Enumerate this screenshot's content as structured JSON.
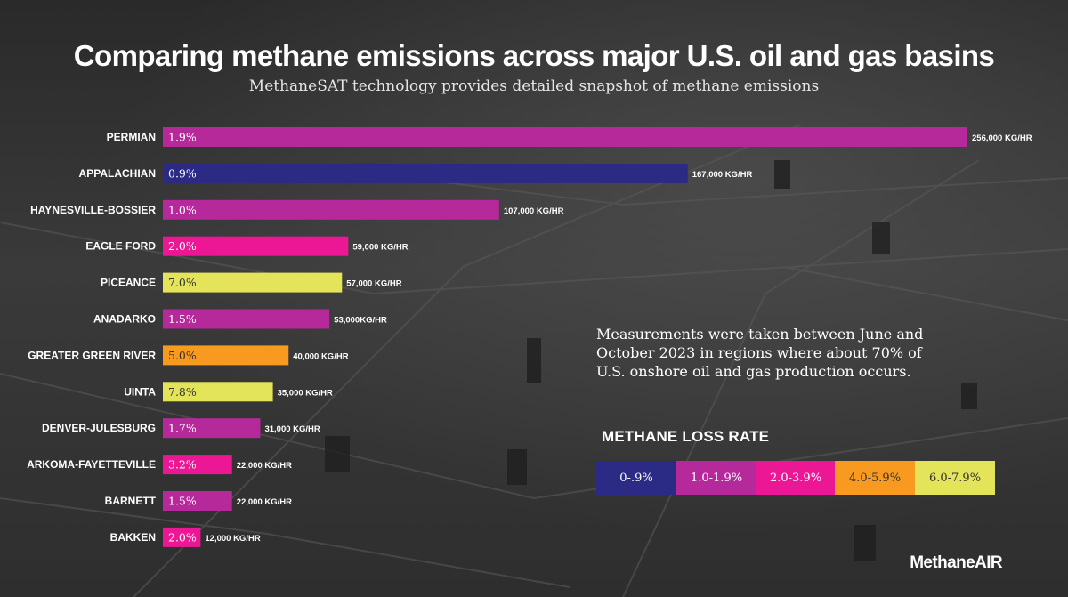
{
  "title": "Comparing methane emissions across major U.S. oil and gas basins",
  "subtitle": "MethaneSAT technology provides detailed snapshot of methane emissions",
  "note": "Measurements were taken between June and October 2023 in regions where about 70% of U.S. onshore oil and gas production occurs.",
  "brand": "MethaneAIR",
  "colors": {
    "rate_0_09": "#2b2a85",
    "rate_10_19": "#b5299a",
    "rate_20_39": "#ec1795",
    "rate_40_59": "#f79a1f",
    "rate_60_79": "#e4e45a"
  },
  "legend": {
    "title": "METHANE LOSS RATE",
    "items": [
      {
        "label": "0-.9%",
        "color": "#2b2a85",
        "text_color": "#ffffff"
      },
      {
        "label": "1.0-1.9%",
        "color": "#b5299a",
        "text_color": "#ffffff"
      },
      {
        "label": "2.0-3.9%",
        "color": "#ec1795",
        "text_color": "#ffffff"
      },
      {
        "label": "4.0-5.9%",
        "color": "#f79a1f",
        "text_color": "#333333"
      },
      {
        "label": "6.0-7.9%",
        "color": "#e4e45a",
        "text_color": "#333333"
      }
    ]
  },
  "chart_data": {
    "type": "bar",
    "orientation": "horizontal",
    "title": "Comparing methane emissions across major U.S. oil and gas basins",
    "subtitle": "MethaneSAT technology provides detailed snapshot of methane emissions",
    "unit": "KG/HR",
    "categories": [
      "PERMIAN",
      "APPALACHIAN",
      "HAYNESVILLE-BOSSIER",
      "EAGLE FORD",
      "PICEANCE",
      "ANADARKO",
      "GREATER GREEN RIVER",
      "UINTA",
      "DENVER-JULESBURG",
      "ARKOMA-FAYETTEVILLE",
      "BARNETT",
      "BAKKEN"
    ],
    "values": [
      256000,
      167000,
      107000,
      59000,
      57000,
      53000,
      40000,
      35000,
      31000,
      22000,
      22000,
      12000
    ],
    "value_labels": [
      "256,000 KG/HR",
      "167,000 KG/HR",
      "107,000 KG/HR",
      "59,000 KG/HR",
      "57,000 KG/HR",
      "53,000KG/HR",
      "40,000 KG/HR",
      "35,000 KG/HR",
      "31,000 KG/HR",
      "22,000 KG/HR",
      "22,000 KG/HR",
      "12,000 KG/HR"
    ],
    "loss_rates": [
      "1.9%",
      "0.9%",
      "1.0%",
      "2.0%",
      "7.0%",
      "1.5%",
      "5.0%",
      "7.8%",
      "1.7%",
      "3.2%",
      "1.5%",
      "2.0%"
    ],
    "bar_colors": [
      "#b5299a",
      "#2b2a85",
      "#b5299a",
      "#ec1795",
      "#e4e45a",
      "#b5299a",
      "#f79a1f",
      "#e4e45a",
      "#b5299a",
      "#ec1795",
      "#b5299a",
      "#ec1795"
    ],
    "rate_text_colors": [
      "#ffffff",
      "#ffffff",
      "#ffffff",
      "#ffffff",
      "#333333",
      "#ffffff",
      "#333333",
      "#333333",
      "#ffffff",
      "#ffffff",
      "#ffffff",
      "#ffffff"
    ],
    "grid": false,
    "legend_position": "bottom-right"
  }
}
